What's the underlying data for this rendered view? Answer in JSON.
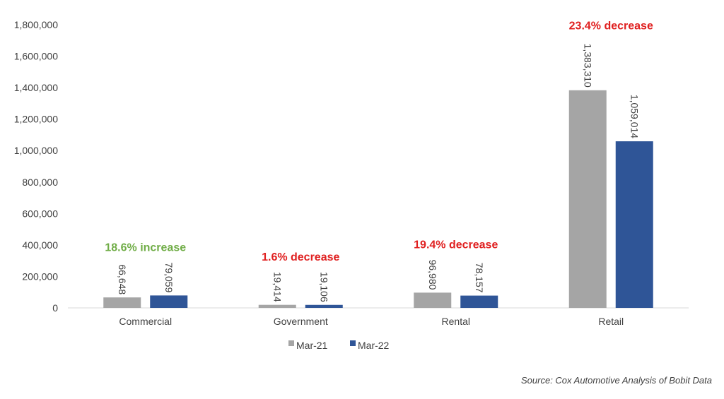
{
  "chart_data": {
    "type": "bar",
    "categories": [
      "Commercial",
      "Government",
      "Rental",
      "Retail"
    ],
    "series": [
      {
        "name": "Mar-21",
        "values": [
          66648,
          19414,
          96980,
          1383310
        ],
        "labels": [
          "66,648",
          "19,414",
          "96,980",
          "1,383,310"
        ],
        "color": "#a5a5a5"
      },
      {
        "name": "Mar-22",
        "values": [
          79059,
          19106,
          78157,
          1059014
        ],
        "labels": [
          "79,059",
          "19,106",
          "78,157",
          "1,059,014"
        ],
        "color": "#2f5597"
      }
    ],
    "annotations": [
      {
        "text": "18.6% increase",
        "category": "Commercial",
        "color": "#70ad47"
      },
      {
        "text": "1.6% decrease",
        "category": "Government",
        "color": "#e02020"
      },
      {
        "text": "19.4% decrease",
        "category": "Rental",
        "color": "#e02020"
      },
      {
        "text": "23.4% decrease",
        "category": "Retail",
        "color": "#e02020"
      }
    ],
    "yticks": [
      0,
      200000,
      400000,
      600000,
      800000,
      1000000,
      1200000,
      1400000,
      1600000,
      1800000
    ],
    "ytick_labels": [
      "0",
      "200,000",
      "400,000",
      "600,000",
      "800,000",
      "1,000,000",
      "1,200,000",
      "1,400,000",
      "1,600,000",
      "1,800,000"
    ],
    "ylim": [
      0,
      1800000
    ],
    "grid": false,
    "legend_position": "bottom",
    "data_label_orientation": "vertical"
  },
  "source": "Source: Cox Automotive Analysis of Bobit Data"
}
